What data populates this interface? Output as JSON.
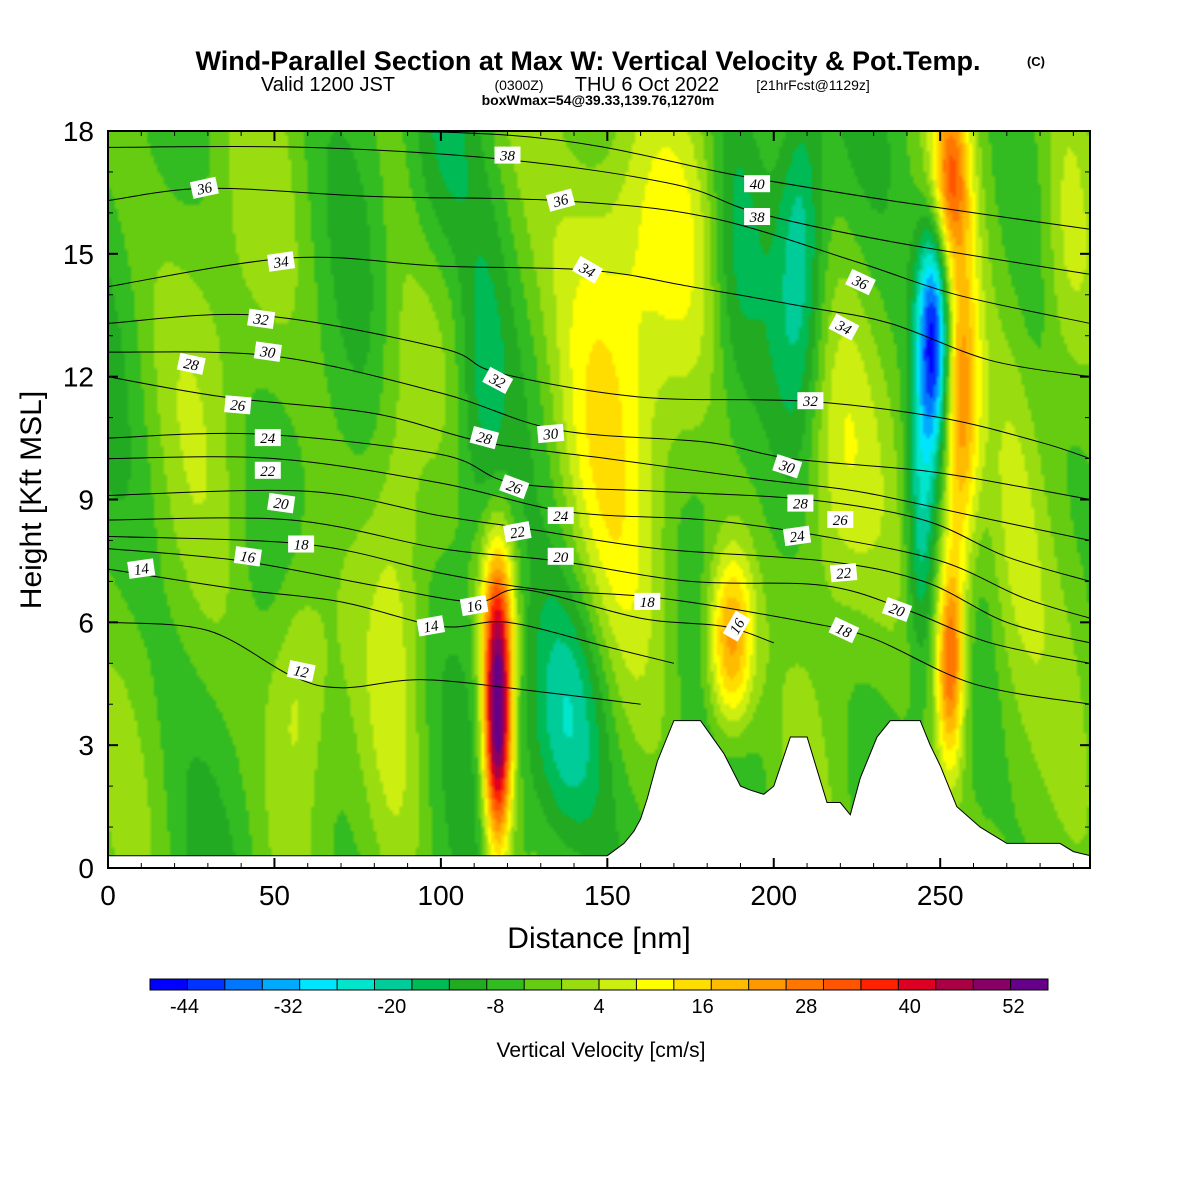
{
  "title": "Wind-Parallel Section at Max W: Vertical Velocity & Pot.Temp.",
  "copyright": "(C)",
  "subtitle_valid": "Valid 1200 JST",
  "subtitle_z": "(0300Z)",
  "subtitle_date": "THU 6 Oct 2022",
  "subtitle_fcst": "[21hrFcst@1129z]",
  "subtitle2": "boxWmax=54@39.33,139.76,1270m",
  "chart_data": {
    "type": "heatmap",
    "xlabel": "Distance [nm]",
    "ylabel": "Height [Kft MSL]",
    "xlim": [
      0,
      295
    ],
    "ylim": [
      0,
      18
    ],
    "xticks": [
      "0",
      "50",
      "100",
      "150",
      "200",
      "250"
    ],
    "yticks": [
      "0",
      "3",
      "6",
      "9",
      "12",
      "15",
      "18"
    ],
    "colorbar_label": "Vertical Velocity [cm/s]",
    "colorbar_ticks": [
      "-44",
      "-32",
      "-20",
      "-8",
      "4",
      "16",
      "28",
      "40",
      "52"
    ],
    "colorbar_colors": [
      "#0000ff",
      "#0033ff",
      "#0077ff",
      "#00aaff",
      "#00e5ff",
      "#00e5cc",
      "#00cc99",
      "#00bb55",
      "#22aa22",
      "#33bb22",
      "#66cc11",
      "#99dd11",
      "#ccee11",
      "#ffff00",
      "#ffdd00",
      "#ffbb00",
      "#ff9900",
      "#ff7700",
      "#ff5500",
      "#ff2200",
      "#dd0022",
      "#aa0044",
      "#880066",
      "#660088"
    ],
    "colorbar_min": -48,
    "colorbar_max": 56,
    "background_value": -5,
    "velocity_features": [
      {
        "x": 117,
        "y": 3.5,
        "sx": 3,
        "sy": 2.2,
        "w": 62
      },
      {
        "x": 117,
        "y": 6.5,
        "sx": 4,
        "sy": 1.5,
        "w": 18
      },
      {
        "x": 138,
        "y": 3.5,
        "sx": 9,
        "sy": 2.5,
        "w": -20
      },
      {
        "x": 112,
        "y": 11.5,
        "sx": 6,
        "sy": 3,
        "w": -12
      },
      {
        "x": 148,
        "y": 10.5,
        "sx": 12,
        "sy": 4.5,
        "w": 15
      },
      {
        "x": 162,
        "y": 15.5,
        "sx": 15,
        "sy": 3,
        "w": 12
      },
      {
        "x": 57,
        "y": 4.5,
        "sx": 7,
        "sy": 2.5,
        "w": 14
      },
      {
        "x": 30,
        "y": 14,
        "sx": 14,
        "sy": 4,
        "w": 5
      },
      {
        "x": 100,
        "y": 17,
        "sx": 8,
        "sy": 2,
        "w": -8
      },
      {
        "x": 187,
        "y": 5.5,
        "sx": 5,
        "sy": 1.6,
        "w": 32
      },
      {
        "x": 208,
        "y": 15.5,
        "sx": 5,
        "sy": 3,
        "w": -15
      },
      {
        "x": 188,
        "y": 15,
        "sx": 6,
        "sy": 3,
        "w": -12
      },
      {
        "x": 218,
        "y": 10,
        "sx": 8,
        "sy": 3,
        "w": 12
      },
      {
        "x": 248,
        "y": 13,
        "sx": 3.5,
        "sy": 2,
        "w": -42
      },
      {
        "x": 244,
        "y": 8.5,
        "sx": 3,
        "sy": 2.5,
        "w": -15
      },
      {
        "x": 256,
        "y": 11,
        "sx": 4,
        "sy": 3,
        "w": 30
      },
      {
        "x": 253,
        "y": 5,
        "sx": 3,
        "sy": 1.8,
        "w": 35
      },
      {
        "x": 253,
        "y": 17,
        "sx": 4,
        "sy": 1.5,
        "w": 28
      },
      {
        "x": 272,
        "y": 8.5,
        "sx": 7,
        "sy": 4,
        "w": 10
      },
      {
        "x": 288,
        "y": 15,
        "sx": 6,
        "sy": 3,
        "w": 12
      },
      {
        "x": 87,
        "y": 8,
        "sx": 6,
        "sy": 6,
        "w": 8
      }
    ],
    "terrain": [
      [
        0,
        0.3
      ],
      [
        150,
        0.3
      ],
      [
        155,
        0.6
      ],
      [
        158,
        0.9
      ],
      [
        160,
        1.2
      ],
      [
        162,
        1.7
      ],
      [
        165,
        2.6
      ],
      [
        168,
        3.2
      ],
      [
        170,
        3.6
      ],
      [
        178,
        3.6
      ],
      [
        185,
        2.8
      ],
      [
        190,
        2.0
      ],
      [
        193,
        1.9
      ],
      [
        197,
        1.8
      ],
      [
        200,
        2.0
      ],
      [
        205,
        3.2
      ],
      [
        210,
        3.2
      ],
      [
        213,
        2.4
      ],
      [
        216,
        1.6
      ],
      [
        220,
        1.6
      ],
      [
        223,
        1.3
      ],
      [
        226,
        2.2
      ],
      [
        231,
        3.2
      ],
      [
        235,
        3.6
      ],
      [
        244,
        3.6
      ],
      [
        247,
        3.0
      ],
      [
        250,
        2.5
      ],
      [
        255,
        1.5
      ],
      [
        262,
        1.0
      ],
      [
        270,
        0.6
      ],
      [
        280,
        0.6
      ],
      [
        286,
        0.6
      ],
      [
        290,
        0.4
      ],
      [
        295,
        0.3
      ]
    ],
    "isentropes": [
      {
        "level": 12,
        "pts": [
          [
            0,
            6.0
          ],
          [
            30,
            5.8
          ],
          [
            55,
            4.7
          ],
          [
            70,
            4.4
          ],
          [
            95,
            4.6
          ],
          [
            130,
            4.3
          ],
          [
            160,
            4.0
          ]
        ]
      },
      {
        "level": 14,
        "pts": [
          [
            0,
            7.3
          ],
          [
            40,
            6.8
          ],
          [
            70,
            6.5
          ],
          [
            100,
            5.9
          ],
          [
            120,
            6.0
          ],
          [
            150,
            5.4
          ],
          [
            170,
            5.0
          ]
        ]
      },
      {
        "level": 16,
        "pts": [
          [
            0,
            7.8
          ],
          [
            40,
            7.5
          ],
          [
            80,
            6.9
          ],
          [
            110,
            6.5
          ],
          [
            125,
            6.8
          ],
          [
            160,
            6.1
          ],
          [
            185,
            5.9
          ],
          [
            200,
            5.5
          ]
        ]
      },
      {
        "level": 18,
        "pts": [
          [
            0,
            8.1
          ],
          [
            60,
            7.9
          ],
          [
            100,
            7.2
          ],
          [
            130,
            6.8
          ],
          [
            165,
            6.6
          ],
          [
            210,
            6.0
          ],
          [
            230,
            5.6
          ],
          [
            260,
            4.5
          ],
          [
            295,
            4.0
          ]
        ]
      },
      {
        "level": 20,
        "pts": [
          [
            0,
            8.5
          ],
          [
            55,
            8.5
          ],
          [
            100,
            7.8
          ],
          [
            135,
            7.5
          ],
          [
            175,
            7.0
          ],
          [
            215,
            6.9
          ],
          [
            240,
            6.3
          ],
          [
            265,
            5.5
          ],
          [
            295,
            5.0
          ]
        ]
      },
      {
        "level": 22,
        "pts": [
          [
            0,
            9.1
          ],
          [
            60,
            9.2
          ],
          [
            100,
            8.6
          ],
          [
            125,
            8.3
          ],
          [
            165,
            7.8
          ],
          [
            215,
            7.5
          ],
          [
            245,
            7.0
          ],
          [
            270,
            6.0
          ],
          [
            295,
            5.5
          ]
        ]
      },
      {
        "level": 24,
        "pts": [
          [
            0,
            10.0
          ],
          [
            50,
            10.0
          ],
          [
            100,
            9.4
          ],
          [
            138,
            8.7
          ],
          [
            180,
            8.5
          ],
          [
            215,
            8.1
          ],
          [
            250,
            7.5
          ],
          [
            275,
            6.6
          ],
          [
            295,
            6.1
          ]
        ]
      },
      {
        "level": 26,
        "pts": [
          [
            0,
            10.5
          ],
          [
            45,
            10.6
          ],
          [
            100,
            10.1
          ],
          [
            122,
            9.4
          ],
          [
            165,
            9.2
          ],
          [
            210,
            9.0
          ],
          [
            245,
            8.5
          ],
          [
            270,
            7.6
          ],
          [
            295,
            7.0
          ]
        ]
      },
      {
        "level": 28,
        "pts": [
          [
            0,
            12.0
          ],
          [
            35,
            11.5
          ],
          [
            80,
            11.1
          ],
          [
            113,
            10.4
          ],
          [
            150,
            10.0
          ],
          [
            195,
            9.5
          ],
          [
            225,
            9.2
          ],
          [
            260,
            8.6
          ],
          [
            295,
            8.0
          ]
        ]
      },
      {
        "level": 30,
        "pts": [
          [
            0,
            12.6
          ],
          [
            50,
            12.5
          ],
          [
            100,
            11.6
          ],
          [
            135,
            10.7
          ],
          [
            180,
            10.4
          ],
          [
            205,
            10.0
          ],
          [
            245,
            9.7
          ],
          [
            275,
            9.3
          ],
          [
            295,
            9.0
          ]
        ]
      },
      {
        "level": 32,
        "pts": [
          [
            0,
            13.3
          ],
          [
            45,
            13.5
          ],
          [
            100,
            12.7
          ],
          [
            117,
            12.1
          ],
          [
            160,
            11.5
          ],
          [
            210,
            11.4
          ],
          [
            250,
            11.0
          ],
          [
            280,
            10.4
          ],
          [
            295,
            10.0
          ]
        ]
      },
      {
        "level": 34,
        "pts": [
          [
            0,
            14.2
          ],
          [
            55,
            14.9
          ],
          [
            100,
            14.7
          ],
          [
            145,
            14.6
          ],
          [
            175,
            14.2
          ],
          [
            210,
            13.7
          ],
          [
            235,
            13.3
          ],
          [
            265,
            12.4
          ],
          [
            295,
            12.0
          ]
        ]
      },
      {
        "level": 36,
        "pts": [
          [
            0,
            16.3
          ],
          [
            30,
            16.6
          ],
          [
            80,
            16.4
          ],
          [
            135,
            16.3
          ],
          [
            180,
            15.9
          ],
          [
            225,
            14.8
          ],
          [
            255,
            14.0
          ],
          [
            295,
            13.3
          ]
        ]
      },
      {
        "level": 38,
        "pts": [
          [
            0,
            17.6
          ],
          [
            60,
            17.6
          ],
          [
            120,
            17.3
          ],
          [
            170,
            16.7
          ],
          [
            195,
            16.0
          ],
          [
            235,
            15.3
          ],
          [
            295,
            14.5
          ]
        ]
      },
      {
        "level": 40,
        "pts": [
          [
            0,
            18.0
          ],
          [
            120,
            17.9
          ],
          [
            190,
            16.9
          ],
          [
            235,
            16.3
          ],
          [
            295,
            15.6
          ]
        ]
      }
    ],
    "contour_labels": [
      {
        "text": "38",
        "x": 120,
        "y": 17.4,
        "angle": 0
      },
      {
        "text": "36",
        "x": 29,
        "y": 16.6,
        "angle": -12
      },
      {
        "text": "36",
        "x": 136,
        "y": 16.3,
        "angle": -15
      },
      {
        "text": "40",
        "x": 195,
        "y": 16.7,
        "angle": 0
      },
      {
        "text": "38",
        "x": 195,
        "y": 15.9,
        "angle": 0
      },
      {
        "text": "34",
        "x": 52,
        "y": 14.8,
        "angle": -8
      },
      {
        "text": "34",
        "x": 144,
        "y": 14.6,
        "angle": 30
      },
      {
        "text": "36",
        "x": 226,
        "y": 14.3,
        "angle": 25
      },
      {
        "text": "32",
        "x": 46,
        "y": 13.4,
        "angle": 8
      },
      {
        "text": "34",
        "x": 221,
        "y": 13.2,
        "angle": 28
      },
      {
        "text": "30",
        "x": 48,
        "y": 12.6,
        "angle": 8
      },
      {
        "text": "28",
        "x": 25,
        "y": 12.3,
        "angle": 12
      },
      {
        "text": "32",
        "x": 117,
        "y": 11.9,
        "angle": 28
      },
      {
        "text": "26",
        "x": 39,
        "y": 11.3,
        "angle": 5
      },
      {
        "text": "32",
        "x": 211,
        "y": 11.4,
        "angle": 0
      },
      {
        "text": "24",
        "x": 48,
        "y": 10.5,
        "angle": 0
      },
      {
        "text": "28",
        "x": 113,
        "y": 10.5,
        "angle": 15
      },
      {
        "text": "30",
        "x": 133,
        "y": 10.6,
        "angle": -5
      },
      {
        "text": "22",
        "x": 48,
        "y": 9.7,
        "angle": 0
      },
      {
        "text": "30",
        "x": 204,
        "y": 9.8,
        "angle": 18
      },
      {
        "text": "26",
        "x": 122,
        "y": 9.3,
        "angle": 20
      },
      {
        "text": "20",
        "x": 52,
        "y": 8.9,
        "angle": 8
      },
      {
        "text": "28",
        "x": 208,
        "y": 8.9,
        "angle": 0
      },
      {
        "text": "24",
        "x": 136,
        "y": 8.6,
        "angle": 0
      },
      {
        "text": "26",
        "x": 220,
        "y": 8.5,
        "angle": 0
      },
      {
        "text": "22",
        "x": 123,
        "y": 8.2,
        "angle": -10
      },
      {
        "text": "24",
        "x": 207,
        "y": 8.1,
        "angle": -8
      },
      {
        "text": "18",
        "x": 58,
        "y": 7.9,
        "angle": 0
      },
      {
        "text": "16",
        "x": 42,
        "y": 7.6,
        "angle": 8
      },
      {
        "text": "20",
        "x": 136,
        "y": 7.6,
        "angle": 0
      },
      {
        "text": "14",
        "x": 10,
        "y": 7.3,
        "angle": -8
      },
      {
        "text": "22",
        "x": 221,
        "y": 7.2,
        "angle": -5
      },
      {
        "text": "18",
        "x": 162,
        "y": 6.5,
        "angle": 0
      },
      {
        "text": "16",
        "x": 110,
        "y": 6.4,
        "angle": -10
      },
      {
        "text": "20",
        "x": 237,
        "y": 6.3,
        "angle": 20
      },
      {
        "text": "16",
        "x": 189,
        "y": 5.9,
        "angle": -60
      },
      {
        "text": "14",
        "x": 97,
        "y": 5.9,
        "angle": -10
      },
      {
        "text": "18",
        "x": 221,
        "y": 5.8,
        "angle": 25
      },
      {
        "text": "12",
        "x": 58,
        "y": 4.8,
        "angle": 12
      }
    ]
  }
}
